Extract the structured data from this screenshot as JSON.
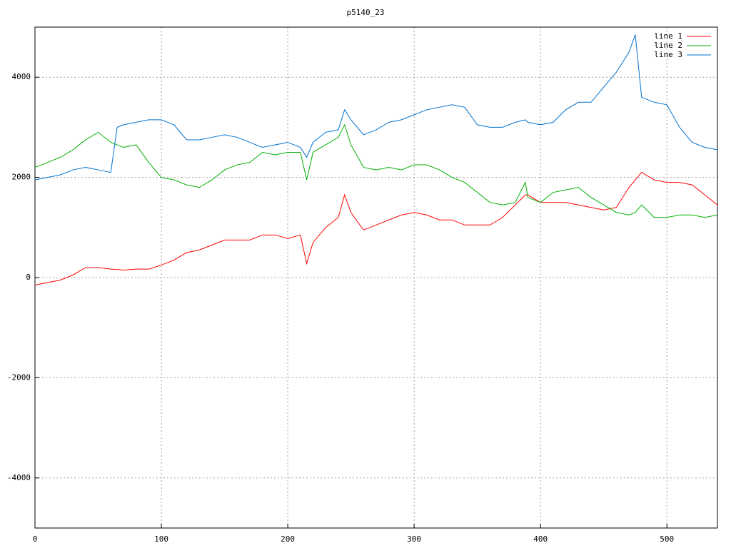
{
  "chart_data": {
    "type": "line",
    "title": "p5140_23",
    "x": [
      0,
      10,
      20,
      30,
      40,
      50,
      60,
      65,
      70,
      80,
      90,
      100,
      110,
      120,
      130,
      140,
      150,
      160,
      170,
      180,
      190,
      200,
      210,
      215,
      220,
      230,
      240,
      245,
      250,
      260,
      270,
      280,
      290,
      300,
      310,
      320,
      330,
      340,
      350,
      360,
      370,
      380,
      388,
      390,
      400,
      410,
      420,
      430,
      440,
      450,
      460,
      470,
      475,
      480,
      490,
      500,
      510,
      520,
      530,
      540
    ],
    "series": [
      {
        "name": "line 1",
        "color": "#ff0000",
        "values": [
          -150,
          -100,
          -50,
          50,
          200,
          200,
          170,
          160,
          150,
          170,
          170,
          250,
          350,
          500,
          550,
          650,
          750,
          750,
          750,
          850,
          850,
          780,
          850,
          280,
          700,
          1000,
          1200,
          1650,
          1300,
          950,
          1050,
          1150,
          1250,
          1300,
          1250,
          1150,
          1150,
          1050,
          1050,
          1050,
          1200,
          1450,
          1650,
          1650,
          1500,
          1500,
          1500,
          1450,
          1400,
          1350,
          1400,
          1800,
          1950,
          2100,
          1950,
          1900,
          1900,
          1850,
          1650,
          1450
        ]
      },
      {
        "name": "line 2",
        "color": "#00b000",
        "values": [
          2200,
          2300,
          2400,
          2550,
          2750,
          2900,
          2700,
          2650,
          2600,
          2650,
          2300,
          2000,
          1950,
          1850,
          1800,
          1950,
          2150,
          2250,
          2300,
          2500,
          2450,
          2500,
          2500,
          1950,
          2500,
          2650,
          2800,
          3050,
          2650,
          2200,
          2150,
          2200,
          2150,
          2250,
          2250,
          2150,
          2000,
          1900,
          1700,
          1500,
          1450,
          1500,
          1900,
          1600,
          1500,
          1700,
          1750,
          1800,
          1600,
          1450,
          1300,
          1250,
          1300,
          1450,
          1200,
          1200,
          1250,
          1250,
          1200,
          1250
        ]
      },
      {
        "name": "line 3",
        "color": "#0070d0",
        "values": [
          1950,
          2000,
          2050,
          2150,
          2200,
          2150,
          2100,
          3000,
          3050,
          3100,
          3150,
          3150,
          3050,
          2750,
          2750,
          2800,
          2850,
          2800,
          2700,
          2600,
          2650,
          2700,
          2600,
          2400,
          2700,
          2900,
          2950,
          3350,
          3150,
          2850,
          2950,
          3100,
          3150,
          3250,
          3350,
          3400,
          3450,
          3400,
          3050,
          3000,
          3000,
          3100,
          3150,
          3100,
          3050,
          3100,
          3350,
          3500,
          3500,
          3800,
          4100,
          4500,
          4850,
          3600,
          3500,
          3450,
          3000,
          2700,
          2600,
          2550
        ]
      }
    ],
    "xlim": [
      0,
      540
    ],
    "xticks": [
      0,
      100,
      200,
      300,
      400,
      500
    ],
    "ylim": [
      -5000,
      5000
    ],
    "yticks": [
      -4000,
      -2000,
      0,
      2000,
      4000
    ],
    "grid": true,
    "legend": "top-right"
  }
}
